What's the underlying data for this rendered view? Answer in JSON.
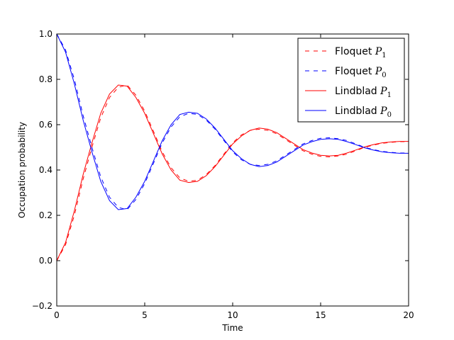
{
  "chart_data": {
    "type": "line",
    "title": "",
    "xlabel": "Time",
    "ylabel": "Occupation probability",
    "xlim": [
      0,
      20
    ],
    "ylim": [
      -0.2,
      1.0
    ],
    "xticks": [
      0,
      5,
      10,
      15,
      20
    ],
    "yticks": [
      -0.2,
      0.0,
      0.2,
      0.4,
      0.6,
      0.8,
      1.0
    ],
    "xtick_labels": [
      "0",
      "5",
      "10",
      "15",
      "20"
    ],
    "ytick_labels": [
      "−0.2",
      "0.0",
      "0.2",
      "0.4",
      "0.6",
      "0.8",
      "1.0"
    ],
    "grid": false,
    "legend_position": "top-right",
    "series": [
      {
        "name": "Floquet P1",
        "legend_main": "Floquet ",
        "legend_var": "P",
        "legend_sub": "1",
        "color": "#ff0000",
        "style": "dashed",
        "x": [
          0,
          0.5,
          1,
          1.5,
          2,
          2.5,
          3,
          3.5,
          4,
          4.5,
          5,
          5.5,
          6,
          6.5,
          7,
          7.5,
          8,
          8.5,
          9,
          9.5,
          10,
          10.5,
          11,
          11.5,
          12,
          12.5,
          13,
          13.5,
          14,
          14.5,
          15,
          15.5,
          16,
          16.5,
          17,
          17.5,
          18,
          18.5,
          19,
          19.5,
          20
        ],
        "y": [
          0.0,
          0.07,
          0.2,
          0.36,
          0.5,
          0.63,
          0.72,
          0.765,
          0.775,
          0.73,
          0.66,
          0.57,
          0.48,
          0.41,
          0.365,
          0.35,
          0.355,
          0.38,
          0.42,
          0.47,
          0.52,
          0.555,
          0.575,
          0.58,
          0.575,
          0.56,
          0.535,
          0.51,
          0.485,
          0.47,
          0.46,
          0.458,
          0.462,
          0.47,
          0.485,
          0.5,
          0.51,
          0.518,
          0.522,
          0.525,
          0.525
        ]
      },
      {
        "name": "Floquet P0",
        "legend_main": "Floquet ",
        "legend_var": "P",
        "legend_sub": "0",
        "color": "#0000ff",
        "style": "dashed",
        "x": [
          0,
          0.5,
          1,
          1.5,
          2,
          2.5,
          3,
          3.5,
          4,
          4.5,
          5,
          5.5,
          6,
          6.5,
          7,
          7.5,
          8,
          8.5,
          9,
          9.5,
          10,
          10.5,
          11,
          11.5,
          12,
          12.5,
          13,
          13.5,
          14,
          14.5,
          15,
          15.5,
          16,
          16.5,
          17,
          17.5,
          18,
          18.5,
          19,
          19.5,
          20
        ],
        "y": [
          1.0,
          0.93,
          0.8,
          0.64,
          0.5,
          0.37,
          0.28,
          0.235,
          0.225,
          0.27,
          0.34,
          0.43,
          0.52,
          0.59,
          0.635,
          0.65,
          0.645,
          0.62,
          0.58,
          0.53,
          0.48,
          0.445,
          0.425,
          0.42,
          0.425,
          0.44,
          0.465,
          0.49,
          0.515,
          0.53,
          0.54,
          0.542,
          0.538,
          0.53,
          0.515,
          0.5,
          0.49,
          0.482,
          0.478,
          0.475,
          0.475
        ]
      },
      {
        "name": "Lindblad P1",
        "legend_main": "Lindblad ",
        "legend_var": "P",
        "legend_sub": "1",
        "color": "#ff0000",
        "style": "solid",
        "x": [
          0,
          0.5,
          1,
          1.5,
          2,
          2.5,
          3,
          3.5,
          4,
          4.5,
          5,
          5.5,
          6,
          6.5,
          7,
          7.5,
          8,
          8.5,
          9,
          9.5,
          10,
          10.5,
          11,
          11.5,
          12,
          12.5,
          13,
          13.5,
          14,
          14.5,
          15,
          15.5,
          16,
          16.5,
          17,
          17.5,
          18,
          18.5,
          19,
          19.5,
          20
        ],
        "y": [
          0.0,
          0.08,
          0.22,
          0.38,
          0.52,
          0.65,
          0.735,
          0.775,
          0.77,
          0.72,
          0.65,
          0.56,
          0.47,
          0.4,
          0.355,
          0.345,
          0.35,
          0.375,
          0.415,
          0.465,
          0.515,
          0.55,
          0.575,
          0.585,
          0.58,
          0.565,
          0.54,
          0.515,
          0.49,
          0.475,
          0.465,
          0.462,
          0.465,
          0.475,
          0.488,
          0.502,
          0.512,
          0.52,
          0.524,
          0.526,
          0.526
        ]
      },
      {
        "name": "Lindblad P0",
        "legend_main": "Lindblad ",
        "legend_var": "P",
        "legend_sub": "0",
        "color": "#0000ff",
        "style": "solid",
        "x": [
          0,
          0.5,
          1,
          1.5,
          2,
          2.5,
          3,
          3.5,
          4,
          4.5,
          5,
          5.5,
          6,
          6.5,
          7,
          7.5,
          8,
          8.5,
          9,
          9.5,
          10,
          10.5,
          11,
          11.5,
          12,
          12.5,
          13,
          13.5,
          14,
          14.5,
          15,
          15.5,
          16,
          16.5,
          17,
          17.5,
          18,
          18.5,
          19,
          19.5,
          20
        ],
        "y": [
          1.0,
          0.92,
          0.78,
          0.62,
          0.48,
          0.35,
          0.265,
          0.225,
          0.23,
          0.28,
          0.35,
          0.44,
          0.53,
          0.6,
          0.645,
          0.655,
          0.65,
          0.625,
          0.585,
          0.535,
          0.485,
          0.45,
          0.425,
          0.415,
          0.42,
          0.435,
          0.46,
          0.485,
          0.51,
          0.525,
          0.535,
          0.538,
          0.535,
          0.525,
          0.512,
          0.498,
          0.488,
          0.48,
          0.476,
          0.474,
          0.474
        ]
      }
    ]
  }
}
